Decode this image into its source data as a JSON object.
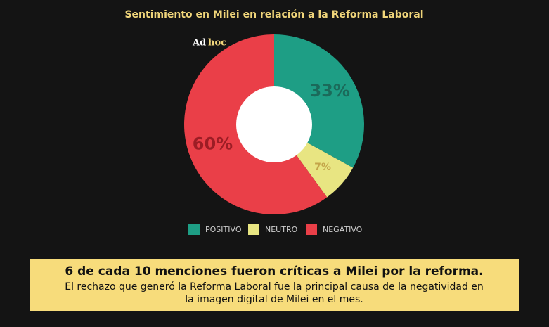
{
  "chart_data": {
    "type": "pie",
    "title": "Sentimiento en Milei en relación a la Reforma Laboral",
    "logo": [
      "Ad",
      "hoc"
    ],
    "categories": [
      "POSITIVO",
      "NEUTRO",
      "NEGATIVO"
    ],
    "values": [
      33,
      7,
      60
    ],
    "value_labels": [
      "33%",
      "7%",
      "60%"
    ],
    "colors": [
      "#1e9e85",
      "#e8e582",
      "#ea3f48"
    ],
    "label_colors": [
      "#1b6a5a",
      "#c4a54a",
      "#9c1d25"
    ],
    "donut": true,
    "annotations": [
      "6 de cada 10 menciones fueron críticas a Milei por la reforma.",
      "El rechazo que generó la Reforma Laboral fue la principal causa de la negatividad en",
      "la imagen digital de Milei en el mes."
    ]
  }
}
